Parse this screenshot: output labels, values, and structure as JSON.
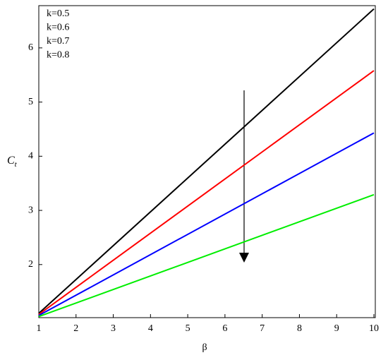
{
  "chart_data": {
    "type": "line",
    "x": [
      1,
      10
    ],
    "series": [
      {
        "name": "k=0.5",
        "color": "#000000",
        "values": [
          1.1,
          6.72
        ]
      },
      {
        "name": "k=0.6",
        "color": "#ff0000",
        "values": [
          1.08,
          5.58
        ]
      },
      {
        "name": "k=0.7",
        "color": "#0000ff",
        "values": [
          1.06,
          4.43
        ]
      },
      {
        "name": "k=0.8",
        "color": "#00ee00",
        "values": [
          1.04,
          3.29
        ]
      }
    ],
    "xlim": [
      1,
      10
    ],
    "xticks": [
      1,
      2,
      3,
      4,
      5,
      6,
      7,
      8,
      9,
      10
    ],
    "ylim": [
      1.02,
      6.78
    ],
    "yticks": [
      2,
      3,
      4,
      5,
      6
    ],
    "x_label": "β",
    "y_label": "C",
    "y_label_subscript": "t",
    "legend": "top-left"
  }
}
